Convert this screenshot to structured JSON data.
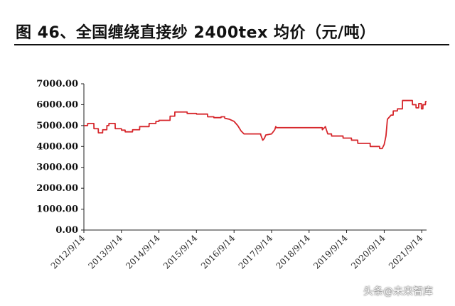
{
  "figure": {
    "title": "图 46、全国缠绕直接纱 2400tex 均价（元/吨）",
    "watermark": "头条@未来智库"
  },
  "colors": {
    "line": "#d6262b",
    "axis": "#222222",
    "text": "#111111"
  },
  "chart_data": {
    "type": "line",
    "title": "图 46、全国缠绕直接纱 2400tex 均价（元/吨）",
    "xlabel": "",
    "ylabel": "",
    "ylim": [
      0,
      7000
    ],
    "y_ticks": [
      "0.00",
      "1000.00",
      "2000.00",
      "3000.00",
      "4000.00",
      "5000.00",
      "6000.00",
      "7000.00"
    ],
    "x_ticks": [
      "2012/9/14",
      "2013/9/14",
      "2014/9/14",
      "2015/9/14",
      "2016/9/14",
      "2017/9/14",
      "2018/9/14",
      "2019/9/14",
      "2020/9/14",
      "2021/9/14"
    ],
    "xlim": [
      "2012/9/14",
      "2021/10/31"
    ],
    "grid": false,
    "legend": "none",
    "series": [
      {
        "points": [
          [
            "2012/9/14",
            5000
          ],
          [
            "2012/10/20",
            5000
          ],
          [
            "2012/10/21",
            5100
          ],
          [
            "2012/12/20",
            5100
          ],
          [
            "2012/12/21",
            4850
          ],
          [
            "2013/2/1",
            4850
          ],
          [
            "2013/2/2",
            4650
          ],
          [
            "2013/3/15",
            4650
          ],
          [
            "2013/3/16",
            4800
          ],
          [
            "2013/4/25",
            4800
          ],
          [
            "2013/4/26",
            5000
          ],
          [
            "2013/5/15",
            5000
          ],
          [
            "2013/5/16",
            5100
          ],
          [
            "2013/7/15",
            5100
          ],
          [
            "2013/7/16",
            4850
          ],
          [
            "2013/9/14",
            4850
          ],
          [
            "2013/9/15",
            4780
          ],
          [
            "2013/10/20",
            4780
          ],
          [
            "2013/10/21",
            4700
          ],
          [
            "2013/12/31",
            4700
          ],
          [
            "2014/1/1",
            4800
          ],
          [
            "2014/3/10",
            4800
          ],
          [
            "2014/3/11",
            4950
          ],
          [
            "2014/6/10",
            4950
          ],
          [
            "2014/6/11",
            5100
          ],
          [
            "2014/8/15",
            5100
          ],
          [
            "2014/8/16",
            5200
          ],
          [
            "2014/9/14",
            5200
          ],
          [
            "2014/9/15",
            5250
          ],
          [
            "2014/12/31",
            5250
          ],
          [
            "2015/1/1",
            5450
          ],
          [
            "2015/2/15",
            5450
          ],
          [
            "2015/2/16",
            5650
          ],
          [
            "2015/6/15",
            5650
          ],
          [
            "2015/6/16",
            5580
          ],
          [
            "2015/9/14",
            5580
          ],
          [
            "2015/9/15",
            5550
          ],
          [
            "2015/12/31",
            5550
          ],
          [
            "2016/1/1",
            5420
          ],
          [
            "2016/3/1",
            5420
          ],
          [
            "2016/3/2",
            5380
          ],
          [
            "2016/5/10",
            5380
          ],
          [
            "2016/5/11",
            5420
          ],
          [
            "2016/6/15",
            5420
          ],
          [
            "2016/6/16",
            5350
          ],
          [
            "2016/8/1",
            5300
          ],
          [
            "2016/9/14",
            5200
          ],
          [
            "2016/10/20",
            5000
          ],
          [
            "2016/11/20",
            4750
          ],
          [
            "2016/12/20",
            4600
          ],
          [
            "2017/5/31",
            4600
          ],
          [
            "2017/6/1",
            4550
          ],
          [
            "2017/6/20",
            4300
          ],
          [
            "2017/7/5",
            4380
          ],
          [
            "2017/7/20",
            4550
          ],
          [
            "2017/9/14",
            4600
          ],
          [
            "2017/10/15",
            4800
          ],
          [
            "2017/10/25",
            4950
          ],
          [
            "2017/11/1",
            4900
          ],
          [
            "2019/1/20",
            4900
          ],
          [
            "2019/1/21",
            4800
          ],
          [
            "2019/2/20",
            4950
          ],
          [
            "2019/3/1",
            4800
          ],
          [
            "2019/3/15",
            4600
          ],
          [
            "2019/4/20",
            4600
          ],
          [
            "2019/4/21",
            4500
          ],
          [
            "2019/8/10",
            4500
          ],
          [
            "2019/8/11",
            4400
          ],
          [
            "2019/10/31",
            4400
          ],
          [
            "2019/11/1",
            4300
          ],
          [
            "2019/12/31",
            4300
          ],
          [
            "2020/1/1",
            4150
          ],
          [
            "2020/4/30",
            4150
          ],
          [
            "2020/5/1",
            4000
          ],
          [
            "2020/7/31",
            4000
          ],
          [
            "2020/8/1",
            3900
          ],
          [
            "2020/8/25",
            3900
          ],
          [
            "2020/9/14",
            4100
          ],
          [
            "2020/10/1",
            4500
          ],
          [
            "2020/10/15",
            5300
          ],
          [
            "2020/11/20",
            5500
          ],
          [
            "2020/12/10",
            5500
          ],
          [
            "2020/12/11",
            5700
          ],
          [
            "2021/1/20",
            5700
          ],
          [
            "2021/1/21",
            5800
          ],
          [
            "2021/3/10",
            5800
          ],
          [
            "2021/3/11",
            6200
          ],
          [
            "2021/6/15",
            6200
          ],
          [
            "2021/6/16",
            6000
          ],
          [
            "2021/7/20",
            6000
          ],
          [
            "2021/7/21",
            5850
          ],
          [
            "2021/8/15",
            5850
          ],
          [
            "2021/8/16",
            6050
          ],
          [
            "2021/9/10",
            6050
          ],
          [
            "2021/9/11",
            5800
          ],
          [
            "2021/9/25",
            5800
          ],
          [
            "2021/9/26",
            6000
          ],
          [
            "2021/10/20",
            6000
          ],
          [
            "2021/10/21",
            6150
          ],
          [
            "2021/10/31",
            6150
          ]
        ]
      }
    ]
  }
}
